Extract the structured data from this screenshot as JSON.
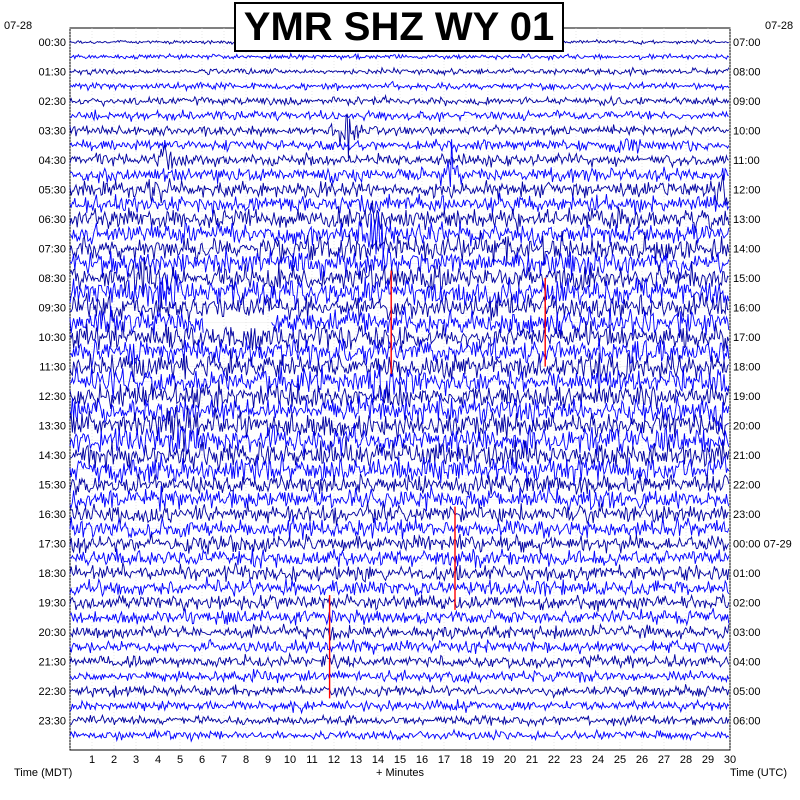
{
  "title": "YMR SHZ WY 01",
  "left_date": "07-28",
  "right_date": "07-28",
  "left_axis_label": "Time (MDT)",
  "right_axis_label": "Time (UTC)",
  "x_axis_label": "+ Minutes",
  "colors": {
    "trace_cycle": [
      "#00005a",
      "#0000ff",
      "#ff0000",
      "#00a000"
    ],
    "visible_cycle": [
      "#0000a0",
      "#0000ff"
    ],
    "grid": "#d8d8d8"
  },
  "chart_data": {
    "type": "helicorder",
    "title": "YMR SHZ WY 01",
    "xlabel": "+ Minutes",
    "x_ticks": [
      "1",
      "2",
      "3",
      "4",
      "5",
      "6",
      "7",
      "8",
      "9",
      "10",
      "11",
      "12",
      "13",
      "14",
      "15",
      "16",
      "17",
      "18",
      "19",
      "20",
      "21",
      "22",
      "23",
      "24",
      "25",
      "26",
      "27",
      "28",
      "29",
      "30"
    ],
    "xlim": [
      0,
      30
    ],
    "left_times": [
      "00:30",
      "01:30",
      "02:30",
      "03:30",
      "04:30",
      "05:30",
      "06:30",
      "07:30",
      "08:30",
      "09:30",
      "10:30",
      "11:30",
      "12:30",
      "13:30",
      "14:30",
      "15:30",
      "16:30",
      "17:30",
      "18:30",
      "19:30",
      "20:30",
      "21:30",
      "22:30",
      "23:30"
    ],
    "right_times": [
      "07:00",
      "08:00",
      "09:00",
      "10:00",
      "11:00",
      "12:00",
      "13:00",
      "14:00",
      "15:00",
      "16:00",
      "17:00",
      "18:00",
      "19:00",
      "20:00",
      "21:00",
      "22:00",
      "23:00",
      "00:00 07-29",
      "01:00",
      "02:00",
      "03:00",
      "04:00",
      "05:00",
      "06:00"
    ],
    "rows_per_day": 48,
    "row_minutes": 30,
    "events": [
      {
        "row": 6,
        "minute": 12.6,
        "amplitude": 1.6,
        "color": "#00005a"
      },
      {
        "row": 7,
        "minute": 25.3,
        "amplitude": 0.9,
        "color": "#00005a"
      },
      {
        "row": 8,
        "minute": 4.5,
        "amplitude": 0.9,
        "color": "#0000ff"
      },
      {
        "row": 9,
        "minute": 17.3,
        "amplitude": 1.4,
        "color": "#00005a"
      },
      {
        "row": 10,
        "minute": 3.8,
        "amplitude": 0.8,
        "color": "#0000ff"
      },
      {
        "row": 10,
        "minute": 29.6,
        "amplitude": 1.6,
        "color": "#0000ff"
      },
      {
        "row": 12,
        "minute": 13.5,
        "amplitude": 1.2,
        "color": "#0000ff"
      },
      {
        "row": 13,
        "minute": 13.9,
        "amplitude": 1.5,
        "color": "#0000ff"
      },
      {
        "row": 16,
        "minute": 3.2,
        "amplitude": 1.0,
        "color": "#0000ff"
      },
      {
        "row": 17,
        "minute": 4.3,
        "amplitude": 1.1,
        "color": "#0000ff"
      },
      {
        "row": 23,
        "minute": 14.2,
        "amplitude": 1.2,
        "color": "#0000ff"
      },
      {
        "row": 25,
        "minute": 29.6,
        "amplitude": 1.2,
        "color": "#0000ff"
      },
      {
        "row": 26,
        "minute": 5.0,
        "amplitude": 1.2,
        "color": "#0000ff"
      },
      {
        "row": 27,
        "minute": 5.2,
        "amplitude": 1.0,
        "color": "#0000ff"
      }
    ],
    "spikes": [
      {
        "row": 19,
        "minute": 14.6,
        "height": 3.5
      },
      {
        "row": 19,
        "minute": 21.6,
        "height": 3.0
      },
      {
        "row": 35,
        "minute": 17.5,
        "height": 3.5
      },
      {
        "row": 41,
        "minute": 11.8,
        "height": 3.5
      }
    ],
    "gap": {
      "row": 19,
      "minute_start": 6.1,
      "minute_end": 9.2
    }
  }
}
